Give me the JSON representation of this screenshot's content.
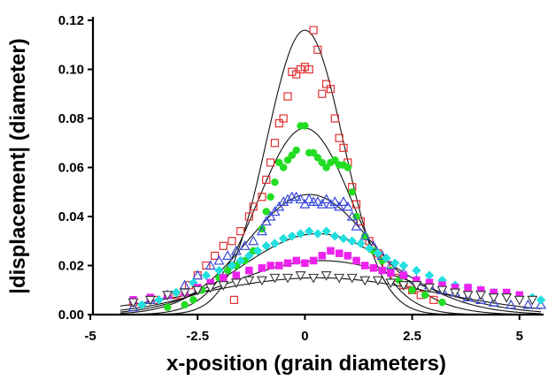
{
  "chart_data": {
    "type": "scatter",
    "title": "",
    "xlabel": "x-position (grain diameters)",
    "ylabel": "|displacement| (diameter)",
    "xlim": [
      -5,
      5.5
    ],
    "ylim": [
      0,
      0.12
    ],
    "x_ticks": [
      "-5",
      "-2.5",
      "0",
      "2.5",
      "5"
    ],
    "x_tick_values": [
      -5,
      -2.5,
      0,
      2.5,
      5
    ],
    "y_ticks": [
      "0.00",
      "0.02",
      "0.04",
      "0.06",
      "0.08",
      "0.10",
      "0.12"
    ],
    "y_tick_values": [
      0,
      0.02,
      0.04,
      0.06,
      0.08,
      0.1,
      0.12
    ],
    "grid": false,
    "legend": "none",
    "series": [
      {
        "marker": "square-open",
        "color": "#e03030",
        "points": [
          [
            -4.0,
            0.005
          ],
          [
            -3.5,
            0.006
          ],
          [
            -3.0,
            0.008
          ],
          [
            -2.7,
            0.012
          ],
          [
            -2.5,
            0.016
          ],
          [
            -2.3,
            0.02
          ],
          [
            -2.1,
            0.024
          ],
          [
            -1.9,
            0.028
          ],
          [
            -1.7,
            0.03
          ],
          [
            -1.5,
            0.034
          ],
          [
            -1.3,
            0.04
          ],
          [
            -1.2,
            0.044
          ],
          [
            -1.0,
            0.048
          ],
          [
            -0.9,
            0.055
          ],
          [
            -0.8,
            0.062
          ],
          [
            -0.7,
            0.07
          ],
          [
            -0.6,
            0.078
          ],
          [
            -0.5,
            0.08
          ],
          [
            -0.4,
            0.089
          ],
          [
            -0.3,
            0.099
          ],
          [
            -0.2,
            0.098
          ],
          [
            -0.1,
            0.1
          ],
          [
            0.0,
            0.101
          ],
          [
            0.1,
            0.1
          ],
          [
            0.2,
            0.116
          ],
          [
            0.3,
            0.108
          ],
          [
            0.4,
            0.09
          ],
          [
            0.5,
            0.094
          ],
          [
            0.6,
            0.092
          ],
          [
            0.7,
            0.08
          ],
          [
            0.8,
            0.072
          ],
          [
            0.9,
            0.068
          ],
          [
            1.0,
            0.062
          ],
          [
            1.1,
            0.052
          ],
          [
            1.2,
            0.045
          ],
          [
            1.3,
            0.038
          ],
          [
            1.5,
            0.03
          ],
          [
            1.7,
            0.025
          ],
          [
            1.9,
            0.02
          ],
          [
            2.1,
            0.015
          ],
          [
            2.3,
            0.012
          ],
          [
            2.5,
            0.01
          ],
          [
            2.7,
            0.008
          ],
          [
            3.0,
            0.006
          ],
          [
            -1.65,
            0.006
          ]
        ]
      },
      {
        "marker": "circle-filled",
        "color": "#22dd22",
        "points": [
          [
            -3.2,
            0.003
          ],
          [
            -2.8,
            0.004
          ],
          [
            -2.6,
            0.006
          ],
          [
            -2.4,
            0.01
          ],
          [
            -2.2,
            0.012
          ],
          [
            -2.0,
            0.015
          ],
          [
            -1.8,
            0.018
          ],
          [
            -1.6,
            0.02
          ],
          [
            -1.4,
            0.022
          ],
          [
            -1.2,
            0.026
          ],
          [
            -1.0,
            0.035
          ],
          [
            -0.9,
            0.042
          ],
          [
            -0.8,
            0.048
          ],
          [
            -0.7,
            0.054
          ],
          [
            -0.6,
            0.062
          ],
          [
            -0.5,
            0.06
          ],
          [
            -0.4,
            0.063
          ],
          [
            -0.3,
            0.065
          ],
          [
            -0.2,
            0.067
          ],
          [
            -0.1,
            0.077
          ],
          [
            0.0,
            0.077
          ],
          [
            0.1,
            0.066
          ],
          [
            0.2,
            0.066
          ],
          [
            0.3,
            0.064
          ],
          [
            0.4,
            0.062
          ],
          [
            0.5,
            0.06
          ],
          [
            0.6,
            0.062
          ],
          [
            0.7,
            0.063
          ],
          [
            0.8,
            0.061
          ],
          [
            0.9,
            0.061
          ],
          [
            1.0,
            0.06
          ],
          [
            1.1,
            0.05
          ],
          [
            1.2,
            0.04
          ],
          [
            1.4,
            0.032
          ],
          [
            1.6,
            0.026
          ],
          [
            1.8,
            0.022
          ],
          [
            2.0,
            0.018
          ],
          [
            2.2,
            0.014
          ],
          [
            2.5,
            0.01
          ],
          [
            2.8,
            0.008
          ],
          [
            3.2,
            0.005
          ]
        ]
      },
      {
        "marker": "triangle-open",
        "color": "#3a4ad8",
        "points": [
          [
            -4.0,
            0.003
          ],
          [
            -3.6,
            0.006
          ],
          [
            -3.2,
            0.008
          ],
          [
            -2.8,
            0.012
          ],
          [
            -2.5,
            0.016
          ],
          [
            -2.2,
            0.02
          ],
          [
            -2.0,
            0.022
          ],
          [
            -1.8,
            0.024
          ],
          [
            -1.6,
            0.026
          ],
          [
            -1.4,
            0.028
          ],
          [
            -1.2,
            0.03
          ],
          [
            -1.0,
            0.034
          ],
          [
            -0.9,
            0.038
          ],
          [
            -0.8,
            0.04
          ],
          [
            -0.7,
            0.042
          ],
          [
            -0.6,
            0.044
          ],
          [
            -0.5,
            0.046
          ],
          [
            -0.4,
            0.047
          ],
          [
            -0.3,
            0.048
          ],
          [
            -0.2,
            0.048
          ],
          [
            -0.1,
            0.047
          ],
          [
            0.0,
            0.045
          ],
          [
            0.1,
            0.047
          ],
          [
            0.2,
            0.046
          ],
          [
            0.3,
            0.046
          ],
          [
            0.4,
            0.045
          ],
          [
            0.5,
            0.047
          ],
          [
            0.6,
            0.045
          ],
          [
            0.7,
            0.046
          ],
          [
            0.8,
            0.044
          ],
          [
            0.9,
            0.046
          ],
          [
            1.0,
            0.044
          ],
          [
            1.1,
            0.04
          ],
          [
            1.2,
            0.036
          ],
          [
            1.4,
            0.032
          ],
          [
            1.6,
            0.028
          ],
          [
            1.8,
            0.024
          ],
          [
            2.0,
            0.02
          ],
          [
            2.3,
            0.017
          ],
          [
            2.6,
            0.014
          ],
          [
            2.9,
            0.012
          ],
          [
            3.2,
            0.01
          ],
          [
            3.5,
            0.009
          ],
          [
            3.8,
            0.007
          ],
          [
            4.1,
            0.006
          ],
          [
            4.4,
            0.005
          ],
          [
            4.8,
            0.004
          ],
          [
            5.2,
            0.004
          ],
          [
            5.5,
            0.004
          ]
        ]
      },
      {
        "marker": "diamond-filled",
        "color": "#22e0e0",
        "points": [
          [
            -3.8,
            0.004
          ],
          [
            -3.4,
            0.006
          ],
          [
            -3.0,
            0.009
          ],
          [
            -2.6,
            0.013
          ],
          [
            -2.3,
            0.016
          ],
          [
            -2.0,
            0.018
          ],
          [
            -1.7,
            0.02
          ],
          [
            -1.5,
            0.022
          ],
          [
            -1.3,
            0.024
          ],
          [
            -1.1,
            0.026
          ],
          [
            -0.9,
            0.028
          ],
          [
            -0.7,
            0.029
          ],
          [
            -0.5,
            0.031
          ],
          [
            -0.3,
            0.032
          ],
          [
            -0.1,
            0.033
          ],
          [
            0.1,
            0.034
          ],
          [
            0.3,
            0.033
          ],
          [
            0.5,
            0.034
          ],
          [
            0.7,
            0.032
          ],
          [
            0.9,
            0.031
          ],
          [
            1.1,
            0.03
          ],
          [
            1.3,
            0.029
          ],
          [
            1.5,
            0.027
          ],
          [
            1.7,
            0.025
          ],
          [
            1.9,
            0.023
          ],
          [
            2.1,
            0.021
          ],
          [
            2.3,
            0.02
          ],
          [
            2.6,
            0.018
          ],
          [
            2.9,
            0.016
          ],
          [
            3.2,
            0.014
          ],
          [
            3.5,
            0.012
          ],
          [
            3.8,
            0.011
          ],
          [
            4.1,
            0.01
          ],
          [
            4.4,
            0.009
          ],
          [
            4.7,
            0.008
          ],
          [
            5.0,
            0.007
          ],
          [
            5.3,
            0.007
          ],
          [
            5.5,
            0.006
          ]
        ]
      },
      {
        "marker": "square-filled",
        "color": "#ee22ee",
        "points": [
          [
            -4.0,
            0.006
          ],
          [
            -3.6,
            0.007
          ],
          [
            -3.2,
            0.008
          ],
          [
            -2.8,
            0.009
          ],
          [
            -2.5,
            0.011
          ],
          [
            -2.2,
            0.013
          ],
          [
            -1.9,
            0.015
          ],
          [
            -1.6,
            0.016
          ],
          [
            -1.3,
            0.018
          ],
          [
            -1.0,
            0.019
          ],
          [
            -0.8,
            0.02
          ],
          [
            -0.6,
            0.02
          ],
          [
            -0.4,
            0.021
          ],
          [
            -0.2,
            0.022
          ],
          [
            0.0,
            0.021
          ],
          [
            0.2,
            0.022
          ],
          [
            0.4,
            0.024
          ],
          [
            0.6,
            0.026
          ],
          [
            0.8,
            0.025
          ],
          [
            1.0,
            0.024
          ],
          [
            1.2,
            0.022
          ],
          [
            1.4,
            0.02
          ],
          [
            1.6,
            0.019
          ],
          [
            1.8,
            0.018
          ],
          [
            2.0,
            0.017
          ],
          [
            2.3,
            0.016
          ],
          [
            2.6,
            0.014
          ],
          [
            2.9,
            0.013
          ],
          [
            3.2,
            0.012
          ],
          [
            3.5,
            0.011
          ],
          [
            3.8,
            0.011
          ],
          [
            4.1,
            0.01
          ],
          [
            4.4,
            0.009
          ],
          [
            4.7,
            0.009
          ],
          [
            5.0,
            0.008
          ]
        ]
      },
      {
        "marker": "triangle-down-open",
        "color": "#333333",
        "points": [
          [
            -4.0,
            0.005
          ],
          [
            -3.6,
            0.006
          ],
          [
            -3.2,
            0.008
          ],
          [
            -2.8,
            0.009
          ],
          [
            -2.5,
            0.01
          ],
          [
            -2.2,
            0.011
          ],
          [
            -1.9,
            0.012
          ],
          [
            -1.6,
            0.013
          ],
          [
            -1.3,
            0.014
          ],
          [
            -1.0,
            0.014
          ],
          [
            -0.7,
            0.015
          ],
          [
            -0.4,
            0.015
          ],
          [
            -0.1,
            0.016
          ],
          [
            0.2,
            0.015
          ],
          [
            0.5,
            0.016
          ],
          [
            0.8,
            0.015
          ],
          [
            1.1,
            0.015
          ],
          [
            1.4,
            0.014
          ],
          [
            1.7,
            0.014
          ],
          [
            2.0,
            0.013
          ],
          [
            2.3,
            0.012
          ],
          [
            2.6,
            0.012
          ],
          [
            2.9,
            0.011
          ],
          [
            3.2,
            0.01
          ],
          [
            3.5,
            0.009
          ],
          [
            3.8,
            0.008
          ],
          [
            4.1,
            0.008
          ],
          [
            4.4,
            0.007
          ],
          [
            4.7,
            0.007
          ],
          [
            5.0,
            0.006
          ],
          [
            5.3,
            0.006
          ]
        ]
      }
    ],
    "fit_curves": [
      {
        "type": "gaussian",
        "amplitude": 0.116,
        "center": 0.0,
        "sigma": 0.9
      },
      {
        "type": "gaussian",
        "amplitude": 0.076,
        "center": 0.0,
        "sigma": 1.1
      },
      {
        "type": "gaussian",
        "amplitude": 0.049,
        "center": 0.1,
        "sigma": 1.45
      },
      {
        "type": "gaussian",
        "amplitude": 0.033,
        "center": 0.3,
        "sigma": 1.75
      },
      {
        "type": "gaussian",
        "amplitude": 0.022,
        "center": 0.4,
        "sigma": 2.1
      },
      {
        "type": "gaussian",
        "amplitude": 0.015,
        "center": 0.3,
        "sigma": 2.7
      }
    ]
  }
}
